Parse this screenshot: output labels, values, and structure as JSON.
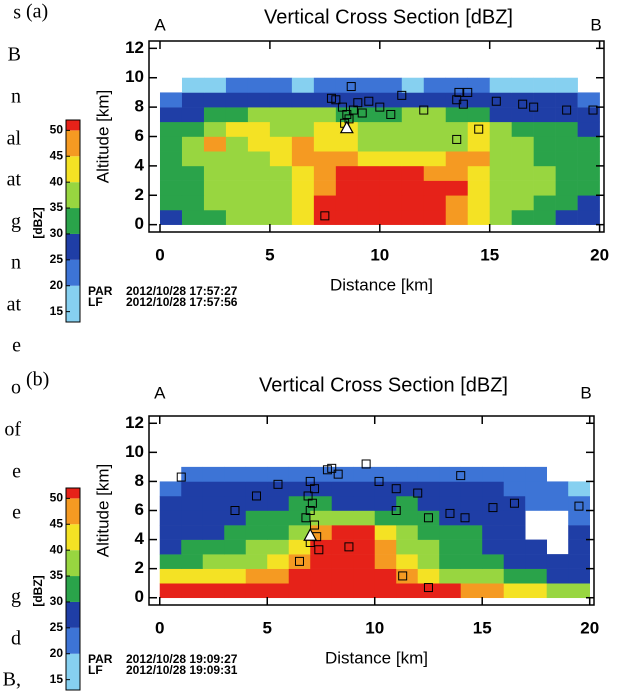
{
  "margin_text": [
    "s",
    "B",
    "n",
    "al",
    "at",
    "g",
    "n",
    "at",
    "e",
    "o",
    "of",
    "e",
    "e",
    "g",
    "d",
    "B,"
  ],
  "chart_data": [
    {
      "type": "heatmap",
      "label": "(a)",
      "title": "Vertical Cross Section [dBZ]",
      "left_label": "A",
      "right_label": "B",
      "x_label": "Distance [km]",
      "y_label": "Altitude [km]",
      "xlim": [
        -0.5,
        20.2
      ],
      "ylim": [
        -0.5,
        12.5
      ],
      "xticks": [
        0,
        5,
        10,
        15,
        20
      ],
      "yticks": [
        0,
        2,
        4,
        6,
        8,
        10,
        12
      ],
      "x_bins": [
        0,
        1,
        2,
        3,
        4,
        5,
        6,
        7,
        8,
        9,
        10,
        11,
        12,
        13,
        14,
        15,
        16,
        17,
        18,
        19,
        20
      ],
      "y_bins": [
        0,
        1,
        2,
        3,
        4,
        5,
        6,
        7,
        8,
        9,
        10
      ],
      "z": [
        [
          25,
          30,
          30,
          35,
          35,
          35,
          40,
          50,
          50,
          50,
          50,
          50,
          50,
          45,
          40,
          35,
          30,
          30,
          25,
          25
        ],
        [
          30,
          30,
          35,
          35,
          35,
          35,
          40,
          50,
          50,
          50,
          50,
          50,
          50,
          45,
          40,
          35,
          35,
          30,
          30,
          25
        ],
        [
          30,
          30,
          35,
          35,
          35,
          35,
          40,
          45,
          50,
          50,
          50,
          50,
          50,
          50,
          40,
          35,
          35,
          35,
          30,
          30
        ],
        [
          30,
          30,
          35,
          35,
          35,
          35,
          40,
          45,
          50,
          50,
          50,
          50,
          45,
          45,
          40,
          35,
          35,
          35,
          30,
          30
        ],
        [
          30,
          35,
          35,
          35,
          35,
          40,
          45,
          45,
          45,
          40,
          40,
          40,
          40,
          45,
          45,
          35,
          35,
          30,
          30,
          30
        ],
        [
          30,
          35,
          45,
          35,
          40,
          40,
          45,
          40,
          40,
          35,
          35,
          35,
          35,
          35,
          40,
          35,
          35,
          30,
          30,
          30
        ],
        [
          30,
          30,
          35,
          40,
          40,
          35,
          35,
          40,
          40,
          35,
          35,
          35,
          35,
          35,
          40,
          35,
          30,
          30,
          30,
          25
        ],
        [
          25,
          25,
          30,
          30,
          35,
          35,
          35,
          35,
          30,
          30,
          30,
          35,
          35,
          30,
          30,
          25,
          25,
          25,
          25,
          25
        ],
        [
          20,
          25,
          25,
          25,
          25,
          25,
          25,
          25,
          25,
          25,
          25,
          25,
          25,
          25,
          25,
          25,
          25,
          25,
          25,
          20
        ],
        [
          null,
          15,
          15,
          20,
          20,
          20,
          15,
          20,
          20,
          20,
          20,
          15,
          20,
          20,
          20,
          15,
          15,
          15,
          15,
          null
        ]
      ],
      "sources": {
        "x": [
          8.0,
          8.3,
          8.5,
          8.8,
          9.0,
          8.6,
          9.2,
          8.4,
          9.5,
          7.8,
          8.7,
          10.0,
          11.0,
          13.5,
          13.6,
          14.0,
          13.8,
          15.3,
          16.5,
          17.0,
          18.5,
          19.7,
          14.5,
          13.5,
          7.5,
          10.5,
          12.0
        ],
        "y": [
          8.5,
          8.0,
          7.5,
          7.8,
          8.3,
          7.2,
          7.6,
          6.9,
          8.4,
          8.6,
          9.4,
          8.0,
          8.8,
          8.5,
          9.0,
          9.0,
          8.2,
          8.4,
          8.2,
          8.0,
          7.8,
          7.8,
          6.5,
          5.8,
          0.6,
          7.5,
          7.8
        ]
      },
      "initiation": {
        "x": [
          8.5
        ],
        "y": [
          6.6
        ]
      },
      "colorbar": {
        "label": "[dBZ]",
        "lim": [
          13,
          52
        ],
        "ticks": [
          15,
          20,
          25,
          30,
          35,
          40,
          45,
          50
        ],
        "colors": [
          "#86d0f0",
          "#3d74d6",
          "#1f3ea6",
          "#2aa34a",
          "#98d640",
          "#f4e224",
          "#f59a22",
          "#e62219"
        ]
      },
      "footer": [
        [
          "PAR",
          "2012/10/28 17:57:27"
        ],
        [
          "LF",
          "2012/10/28 17:57:56"
        ]
      ]
    },
    {
      "type": "heatmap",
      "label": "(b)",
      "title": "Vertical Cross Section [dBZ]",
      "left_label": "A",
      "right_label": "B",
      "x_label": "Distance [km]",
      "y_label": "Altitude [km]",
      "xlim": [
        -0.5,
        20.2
      ],
      "ylim": [
        -0.5,
        12.5
      ],
      "xticks": [
        0,
        5,
        10,
        15,
        20
      ],
      "yticks": [
        0,
        2,
        4,
        6,
        8,
        10,
        12
      ],
      "x_bins": [
        0,
        1,
        2,
        3,
        4,
        5,
        6,
        7,
        8,
        9,
        10,
        11,
        12,
        13,
        14,
        15,
        16,
        17,
        18,
        19,
        20
      ],
      "y_bins": [
        0,
        1,
        2,
        3,
        4,
        5,
        6,
        7,
        8,
        9
      ],
      "z": [
        [
          50,
          50,
          50,
          50,
          50,
          50,
          50,
          50,
          50,
          50,
          50,
          50,
          50,
          50,
          45,
          45,
          40,
          40,
          35,
          35
        ],
        [
          40,
          40,
          40,
          40,
          45,
          45,
          50,
          50,
          50,
          50,
          50,
          45,
          40,
          35,
          35,
          35,
          30,
          30,
          25,
          25
        ],
        [
          30,
          30,
          35,
          35,
          35,
          40,
          45,
          50,
          50,
          50,
          45,
          40,
          35,
          30,
          30,
          30,
          25,
          25,
          25,
          25
        ],
        [
          25,
          30,
          30,
          30,
          35,
          35,
          40,
          50,
          50,
          50,
          45,
          35,
          35,
          30,
          30,
          25,
          25,
          25,
          null,
          25
        ],
        [
          25,
          25,
          25,
          30,
          30,
          30,
          35,
          45,
          50,
          50,
          40,
          35,
          30,
          30,
          30,
          25,
          25,
          null,
          null,
          25
        ],
        [
          25,
          25,
          25,
          25,
          30,
          30,
          30,
          35,
          35,
          35,
          30,
          30,
          30,
          25,
          25,
          25,
          25,
          null,
          null,
          20
        ],
        [
          25,
          25,
          25,
          25,
          25,
          25,
          30,
          30,
          25,
          25,
          25,
          30,
          25,
          25,
          25,
          25,
          25,
          20,
          20,
          20
        ],
        [
          20,
          25,
          25,
          25,
          25,
          25,
          25,
          25,
          25,
          25,
          25,
          25,
          25,
          25,
          25,
          25,
          20,
          20,
          20,
          15
        ],
        [
          null,
          20,
          20,
          20,
          20,
          20,
          20,
          20,
          20,
          20,
          20,
          20,
          20,
          20,
          20,
          20,
          20,
          20,
          null,
          null
        ]
      ],
      "sources": {
        "x": [
          7.0,
          7.2,
          6.9,
          7.1,
          7.0,
          6.8,
          7.2,
          7.3,
          7.0,
          7.4,
          7.8,
          8.0,
          8.3,
          9.6,
          10.2,
          11.0,
          12.0,
          14.0,
          3.5,
          4.5,
          1.0,
          5.5,
          12.5,
          11.0,
          13.5,
          14.2,
          15.5,
          16.5,
          19.5,
          8.8,
          11.3,
          12.5,
          6.5
        ],
        "y": [
          8.0,
          7.5,
          7.0,
          6.5,
          6.0,
          5.5,
          5.0,
          4.2,
          3.8,
          3.3,
          8.8,
          8.9,
          8.5,
          9.2,
          8.0,
          7.5,
          7.2,
          8.4,
          6.0,
          7.0,
          8.3,
          7.8,
          5.5,
          6.0,
          5.8,
          5.5,
          6.2,
          6.5,
          6.3,
          3.5,
          1.5,
          0.7,
          2.5
        ]
      },
      "initiation": {
        "x": [
          7.0
        ],
        "y": [
          4.3
        ]
      },
      "colorbar": {
        "label": "[dBZ]",
        "lim": [
          13,
          52
        ],
        "ticks": [
          15,
          20,
          25,
          30,
          35,
          40,
          45,
          50
        ],
        "colors": [
          "#86d0f0",
          "#3d74d6",
          "#1f3ea6",
          "#2aa34a",
          "#98d640",
          "#f4e224",
          "#f59a22",
          "#e62219"
        ]
      },
      "footer": [
        [
          "PAR",
          "2012/10/28 19:09:27"
        ],
        [
          "LF",
          "2012/10/28 19:09:31"
        ]
      ]
    }
  ]
}
